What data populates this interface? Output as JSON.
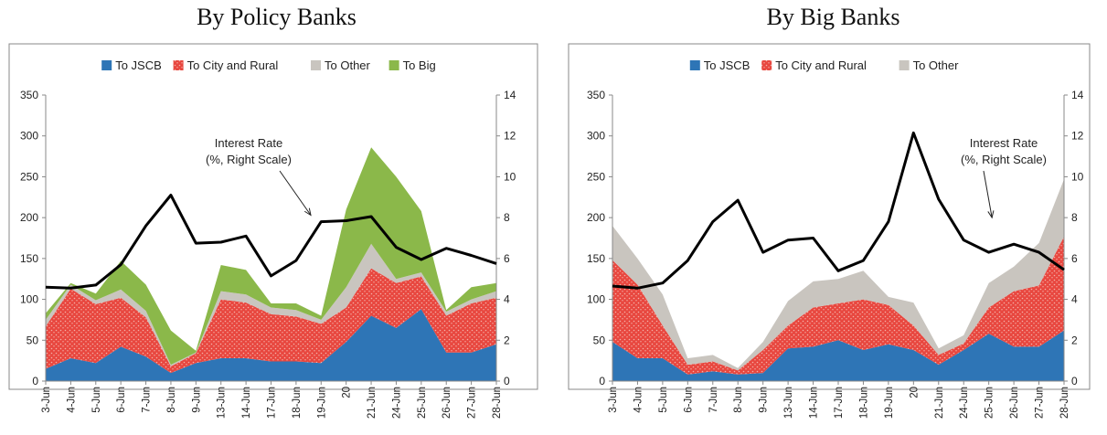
{
  "colors": {
    "jscb": "#2e75b6",
    "city_rural": "#e8473f",
    "other": "#c9c5bf",
    "big": "#8bb84a",
    "rate_line": "#000000"
  },
  "chart_data": [
    {
      "type": "area",
      "stacked": true,
      "title": "By Policy Banks",
      "categories": [
        "3-Jun",
        "4-Jun",
        "5-Jun",
        "6-Jun",
        "7-Jun",
        "8-Jun",
        "9-Jun",
        "13-Jun",
        "14-Jun",
        "17-Jun",
        "18-Jun",
        "19-Jun",
        "20",
        "21-Jun",
        "24-Jun",
        "25-Jun",
        "26-Jun",
        "27-Jun",
        "28-Jun"
      ],
      "ylim": [
        0,
        350
      ],
      "yticks": [
        0,
        50,
        100,
        150,
        200,
        250,
        300,
        350
      ],
      "y2lim": [
        0,
        14
      ],
      "y2ticks": [
        0,
        2,
        4,
        6,
        8,
        10,
        12,
        14
      ],
      "legend_position": "top",
      "grid": false,
      "series": [
        {
          "name": "To JSCB",
          "values": [
            15,
            28,
            22,
            42,
            30,
            10,
            22,
            28,
            28,
            24,
            24,
            22,
            48,
            80,
            65,
            88,
            35,
            35,
            45
          ]
        },
        {
          "name": "To City and Rural",
          "values": [
            52,
            85,
            72,
            60,
            48,
            8,
            12,
            72,
            68,
            58,
            55,
            48,
            42,
            58,
            55,
            40,
            45,
            60,
            57
          ]
        },
        {
          "name": "To Other",
          "values": [
            8,
            5,
            5,
            10,
            8,
            2,
            1,
            10,
            10,
            8,
            8,
            5,
            25,
            30,
            5,
            5,
            5,
            5,
            8
          ]
        },
        {
          "name": "To Big",
          "values": [
            8,
            2,
            8,
            35,
            32,
            42,
            2,
            32,
            30,
            5,
            8,
            5,
            95,
            118,
            125,
            75,
            2,
            15,
            10
          ]
        }
      ],
      "line": {
        "name": "Interest Rate",
        "axis": "right",
        "values": [
          4.6,
          4.55,
          4.7,
          5.7,
          7.6,
          9.1,
          6.75,
          6.8,
          7.1,
          5.15,
          5.9,
          7.8,
          7.85,
          8.05,
          6.55,
          5.95,
          6.5,
          6.15,
          5.75
        ]
      },
      "annotation": {
        "lines": [
          "Interest Rate",
          "(%, Right Scale)"
        ],
        "points_to_index": 10.5
      }
    },
    {
      "type": "area",
      "stacked": true,
      "title": "By Big Banks",
      "categories": [
        "3-Jun",
        "4-Jun",
        "5-Jun",
        "6-Jun",
        "7-Jun",
        "8-Jun",
        "9-Jun",
        "13-Jun",
        "14-Jun",
        "17-Jun",
        "18-Jun",
        "19-Jun",
        "20",
        "21-Jun",
        "24-Jun",
        "25-Jun",
        "26-Jun",
        "27-Jun",
        "28-Jun"
      ],
      "ylim": [
        0,
        350
      ],
      "yticks": [
        0,
        50,
        100,
        150,
        200,
        250,
        300,
        350
      ],
      "y2lim": [
        0,
        14
      ],
      "y2ticks": [
        0,
        2,
        4,
        6,
        8,
        10,
        12,
        14
      ],
      "legend_position": "top",
      "grid": false,
      "series": [
        {
          "name": "To JSCB",
          "values": [
            48,
            28,
            28,
            8,
            12,
            8,
            10,
            40,
            42,
            50,
            38,
            45,
            38,
            20,
            38,
            58,
            42,
            42,
            62
          ]
        },
        {
          "name": "To City and Rural",
          "values": [
            100,
            90,
            40,
            12,
            12,
            5,
            28,
            28,
            48,
            45,
            62,
            48,
            30,
            12,
            8,
            32,
            68,
            75,
            115
          ]
        },
        {
          "name": "To Other",
          "values": [
            42,
            32,
            38,
            8,
            8,
            3,
            10,
            30,
            32,
            30,
            35,
            10,
            28,
            8,
            10,
            30,
            30,
            52,
            70
          ]
        }
      ],
      "line": {
        "name": "Interest Rate",
        "axis": "right",
        "values": [
          4.65,
          4.55,
          4.8,
          5.9,
          7.8,
          8.85,
          6.3,
          6.9,
          7.0,
          5.4,
          5.9,
          7.8,
          12.15,
          8.9,
          6.9,
          6.3,
          6.7,
          6.3,
          5.45
        ]
      },
      "annotation": {
        "lines": [
          "Interest Rate",
          "(%, Right Scale)"
        ],
        "points_to_index": 15.2
      }
    }
  ]
}
